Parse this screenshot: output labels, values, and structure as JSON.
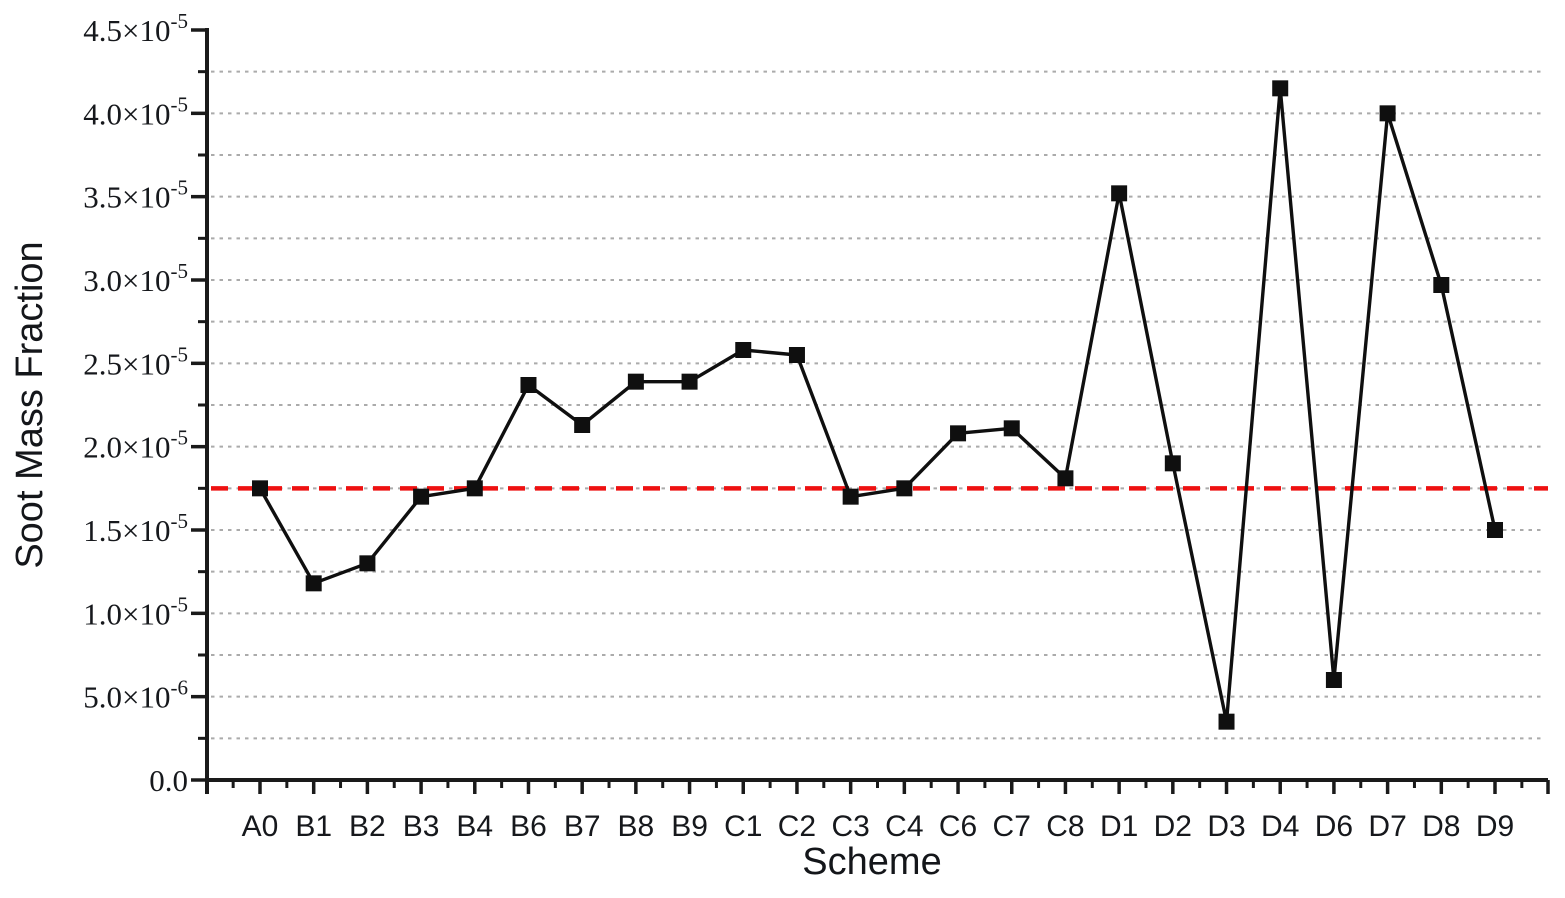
{
  "chart_data": {
    "type": "line",
    "title": "",
    "xlabel": "Scheme",
    "ylabel": "Soot Mass Fraction",
    "categories": [
      "A0",
      "B1",
      "B2",
      "B3",
      "B4",
      "B6",
      "B7",
      "B8",
      "B9",
      "C1",
      "C2",
      "C3",
      "C4",
      "C6",
      "C7",
      "C8",
      "D1",
      "D2",
      "D3",
      "D4",
      "D6",
      "D7",
      "D8",
      "D9"
    ],
    "series": [
      {
        "name": "Soot Mass Fraction",
        "marker": "square",
        "color": "#0f0f0f",
        "values": [
          1.75e-05,
          1.18e-05,
          1.3e-05,
          1.7e-05,
          1.75e-05,
          2.37e-05,
          2.13e-05,
          2.39e-05,
          2.39e-05,
          2.58e-05,
          2.55e-05,
          1.7e-05,
          1.75e-05,
          2.08e-05,
          2.11e-05,
          1.81e-05,
          3.52e-05,
          1.9e-05,
          3.5e-06,
          4.15e-05,
          6e-06,
          4e-05,
          2.97e-05,
          1.5e-05
        ]
      }
    ],
    "reference_line": {
      "value": 1.75e-05,
      "style": "dashed",
      "color": "#ee1111",
      "meaning": "baseline level of scheme A0"
    },
    "ylim": [
      0,
      4.5e-05
    ],
    "ytick_step": 5e-06,
    "yminor_step": 2.5e-06,
    "ytick_labels": [
      {
        "base": "0.0",
        "exp": ""
      },
      {
        "base": "5.0×10",
        "exp": "-6"
      },
      {
        "base": "1.0×10",
        "exp": "-5"
      },
      {
        "base": "1.5×10",
        "exp": "-5"
      },
      {
        "base": "2.0×10",
        "exp": "-5"
      },
      {
        "base": "2.5×10",
        "exp": "-5"
      },
      {
        "base": "3.0×10",
        "exp": "-5"
      },
      {
        "base": "3.5×10",
        "exp": "-5"
      },
      {
        "base": "4.0×10",
        "exp": "-5"
      },
      {
        "base": "4.5×10",
        "exp": "-5"
      }
    ],
    "grid": {
      "horizontal": true,
      "vertical": false,
      "interval": 2.5e-06,
      "style": "dotted",
      "color": "#ababab"
    },
    "legend": null,
    "styles": {
      "axis_color": "#1a1a1a",
      "grid_color": "#ababab",
      "line_color": "#0f0f0f",
      "marker_color": "#0f0f0f",
      "reference_color": "#ee1111",
      "background": "#ffffff"
    }
  }
}
